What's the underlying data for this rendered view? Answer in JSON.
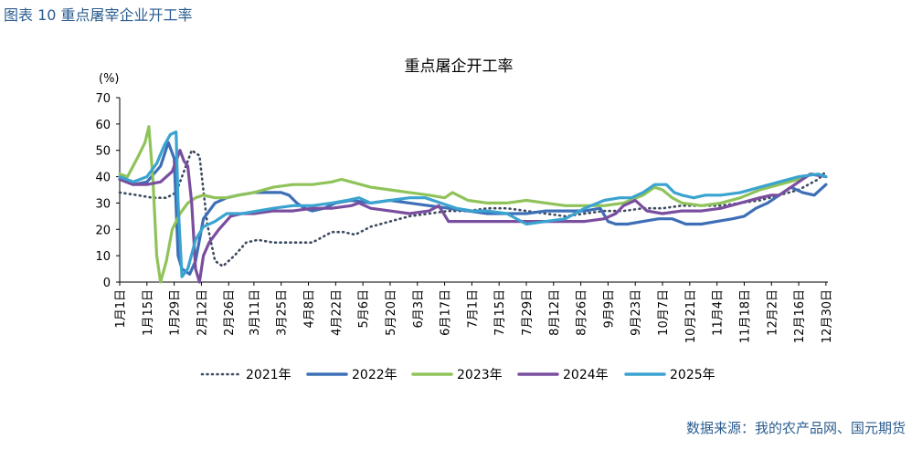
{
  "caption": "图表 10  重点屠宰企业开工率",
  "source": "数据来源：我的农产品网、国元期货",
  "chart_data": {
    "type": "line",
    "title": "重点屠企开工率",
    "ylabel": "(%)",
    "xlabel": "",
    "ylim": [
      0,
      70
    ],
    "yticks": [
      0,
      10,
      20,
      30,
      40,
      50,
      60,
      70
    ],
    "xlim": [
      1,
      365
    ],
    "grid": false,
    "legend": "bottom",
    "x_tick_labels": [
      "1月1日",
      "1月15日",
      "1月29日",
      "2月12日",
      "2月26日",
      "3月11日",
      "3月25日",
      "4月8日",
      "4月22日",
      "5月6日",
      "5月20日",
      "6月3日",
      "6月17日",
      "7月1日",
      "7月15日",
      "7月29日",
      "8月12日",
      "8月26日",
      "9月9日",
      "9月23日",
      "10月7日",
      "10月21日",
      "11月4日",
      "11月18日",
      "12月2日",
      "12月16日",
      "12月30日"
    ],
    "x_tick_days": [
      1,
      15,
      29,
      43,
      57,
      70,
      84,
      98,
      112,
      126,
      140,
      154,
      168,
      182,
      196,
      210,
      224,
      238,
      252,
      266,
      280,
      294,
      308,
      322,
      336,
      350,
      364
    ],
    "series": [
      {
        "name": "2021年",
        "color": "#3b4a5e",
        "style": "dotted",
        "x": [
          1,
          10,
          18,
          25,
          30,
          34,
          38,
          42,
          46,
          50,
          54,
          60,
          66,
          72,
          80,
          90,
          100,
          110,
          116,
          122,
          130,
          140,
          150,
          160,
          170,
          180,
          190,
          200,
          210,
          220,
          230,
          240,
          250,
          260,
          270,
          280,
          290,
          300,
          310,
          320,
          330,
          340,
          350,
          355,
          360,
          364
        ],
        "y": [
          34,
          33,
          32,
          32,
          34,
          42,
          50,
          48,
          22,
          8,
          6,
          10,
          15,
          16,
          15,
          15,
          15,
          19,
          19,
          18,
          21,
          23,
          25,
          26,
          27,
          27,
          28,
          28,
          27,
          26,
          25,
          26,
          27,
          27,
          28,
          28,
          29,
          29,
          29,
          30,
          31,
          33,
          35,
          37,
          39,
          42
        ]
      },
      {
        "name": "2022年",
        "color": "#3d6fb6",
        "style": "solid",
        "x": [
          1,
          8,
          15,
          22,
          26,
          29,
          31,
          33,
          37,
          40,
          44,
          50,
          56,
          62,
          70,
          78,
          84,
          88,
          92,
          96,
          100,
          106,
          112,
          120,
          130,
          140,
          150,
          160,
          170,
          180,
          190,
          200,
          210,
          220,
          230,
          240,
          248,
          252,
          256,
          262,
          270,
          278,
          285,
          292,
          300,
          308,
          316,
          322,
          328,
          334,
          340,
          346,
          352,
          358,
          364
        ],
        "y": [
          39,
          37,
          38,
          44,
          53,
          47,
          10,
          5,
          3,
          8,
          24,
          30,
          32,
          33,
          34,
          34,
          34,
          33,
          30,
          28,
          27,
          28,
          30,
          31,
          30,
          31,
          30,
          29,
          28,
          27,
          26,
          26,
          26,
          27,
          27,
          27,
          28,
          23,
          22,
          22,
          23,
          24,
          24,
          22,
          22,
          23,
          24,
          25,
          28,
          30,
          33,
          36,
          34,
          33,
          37
        ]
      },
      {
        "name": "2023年",
        "color": "#8fc35a",
        "style": "solid",
        "x": [
          1,
          5,
          10,
          14,
          16,
          18,
          20,
          22,
          25,
          28,
          32,
          36,
          40,
          44,
          50,
          56,
          62,
          70,
          80,
          90,
          100,
          110,
          115,
          120,
          130,
          140,
          150,
          160,
          168,
          172,
          180,
          190,
          200,
          210,
          220,
          230,
          240,
          250,
          260,
          270,
          276,
          280,
          285,
          290,
          300,
          310,
          320,
          330,
          340,
          350,
          357,
          364
        ],
        "y": [
          41,
          40,
          47,
          53,
          59,
          40,
          10,
          0,
          8,
          20,
          26,
          30,
          32,
          33,
          32,
          32,
          33,
          34,
          36,
          37,
          37,
          38,
          39,
          38,
          36,
          35,
          34,
          33,
          32,
          34,
          31,
          30,
          30,
          31,
          30,
          29,
          29,
          29,
          30,
          33,
          36,
          35,
          32,
          30,
          29,
          30,
          32,
          35,
          37,
          39,
          41,
          40
        ]
      },
      {
        "name": "2024年",
        "color": "#7a4e9f",
        "style": "solid",
        "x": [
          1,
          8,
          15,
          22,
          28,
          32,
          34,
          36,
          38,
          40,
          42,
          44,
          47,
          52,
          58,
          64,
          70,
          80,
          90,
          100,
          110,
          120,
          124,
          130,
          140,
          150,
          160,
          165,
          170,
          180,
          190,
          200,
          210,
          220,
          230,
          240,
          250,
          256,
          260,
          266,
          272,
          280,
          290,
          300,
          310,
          320,
          330,
          336,
          340,
          350,
          356,
          364
        ],
        "y": [
          39,
          37,
          37,
          38,
          42,
          50,
          46,
          44,
          30,
          5,
          0,
          10,
          15,
          20,
          25,
          26,
          26,
          27,
          27,
          28,
          28,
          29,
          30,
          28,
          27,
          26,
          27,
          29,
          23,
          23,
          23,
          23,
          23,
          23,
          23,
          23,
          24,
          26,
          29,
          31,
          27,
          26,
          27,
          27,
          28,
          30,
          32,
          33,
          33,
          38,
          41,
          40
        ]
      },
      {
        "name": "2025年",
        "color": "#3aa3cf",
        "style": "solid",
        "x": [
          1,
          8,
          15,
          20,
          24,
          27,
          30,
          31,
          33,
          36,
          40,
          44,
          50,
          56,
          64,
          72,
          80,
          90,
          100,
          110,
          118,
          124,
          130,
          140,
          150,
          158,
          166,
          174,
          182,
          190,
          200,
          210,
          220,
          230,
          240,
          250,
          258,
          264,
          270,
          276,
          282,
          286,
          290,
          296,
          302,
          310,
          320,
          330,
          340,
          350,
          360,
          364
        ],
        "y": [
          40,
          38,
          40,
          45,
          52,
          56,
          57,
          30,
          2,
          5,
          16,
          21,
          23,
          26,
          26,
          27,
          28,
          29,
          29,
          30,
          31,
          32,
          30,
          31,
          32,
          32,
          30,
          28,
          27,
          27,
          26,
          22,
          23,
          24,
          28,
          31,
          32,
          32,
          34,
          37,
          37,
          34,
          33,
          32,
          33,
          33,
          34,
          36,
          38,
          40,
          41,
          40
        ]
      }
    ]
  }
}
